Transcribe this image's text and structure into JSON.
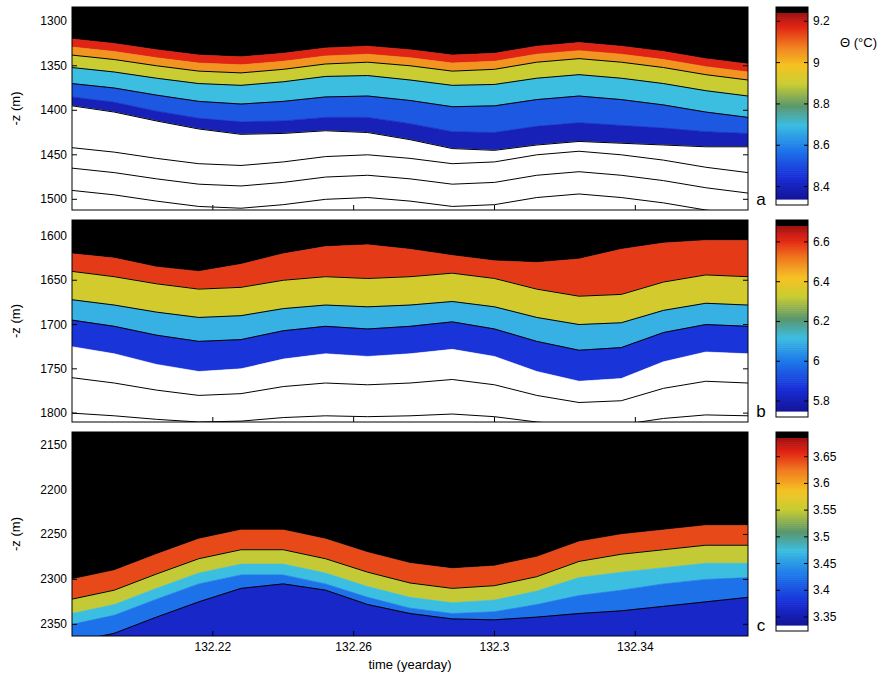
{
  "chart_data": [
    {
      "type": "contour",
      "label": "a",
      "ylabel": "-z (m)",
      "tick_labels": "y",
      "x": [
        132.18,
        132.192,
        132.204,
        132.216,
        132.228,
        132.24,
        132.252,
        132.264,
        132.276,
        132.288,
        132.3,
        132.312,
        132.324,
        132.336,
        132.348,
        132.36,
        132.372
      ],
      "xlim": [
        132.18,
        132.372
      ],
      "xticks": [
        132.22,
        132.26,
        132.3,
        132.34
      ],
      "ylim": [
        1512,
        1284
      ],
      "yticks": [
        1300,
        1350,
        1400,
        1450,
        1500
      ],
      "colorbar": {
        "title": "Θ (°C)",
        "range": [
          8.34,
          9.24
        ],
        "ticks": [
          8.4,
          8.6,
          8.8,
          9,
          9.2
        ]
      },
      "isotherms": [
        {
          "level": 9.25,
          "line_style": "none",
          "values": [
            1320,
            1325,
            1332,
            1338,
            1340,
            1336,
            1330,
            1328,
            1332,
            1338,
            1336,
            1328,
            1324,
            1328,
            1334,
            1342,
            1348
          ]
        },
        {
          "level": 9.1,
          "line_style": "none",
          "values": [
            1329,
            1334,
            1341,
            1347,
            1349,
            1345,
            1339,
            1337,
            1341,
            1347,
            1345,
            1337,
            1333,
            1337,
            1343,
            1351,
            1357
          ]
        },
        {
          "level": 9.0,
          "line_style": "solid",
          "values": [
            1338,
            1343,
            1350,
            1356,
            1358,
            1354,
            1348,
            1346,
            1350,
            1356,
            1354,
            1346,
            1342,
            1346,
            1352,
            1360,
            1366
          ]
        },
        {
          "level": 8.8,
          "line_style": "solid",
          "values": [
            1352,
            1357,
            1364,
            1370,
            1372,
            1368,
            1362,
            1361,
            1366,
            1372,
            1371,
            1364,
            1360,
            1364,
            1370,
            1378,
            1384
          ]
        },
        {
          "level": 8.6,
          "line_style": "solid",
          "values": [
            1370,
            1375,
            1383,
            1390,
            1393,
            1390,
            1385,
            1384,
            1389,
            1396,
            1395,
            1388,
            1384,
            1388,
            1394,
            1402,
            1408
          ]
        },
        {
          "level": 8.45,
          "line_style": "none",
          "values": [
            1385,
            1391,
            1401,
            1409,
            1413,
            1412,
            1408,
            1408,
            1415,
            1424,
            1425,
            1418,
            1414,
            1417,
            1420,
            1424,
            1426
          ]
        },
        {
          "level": 8.34,
          "line_style": "solid",
          "values": [
            1395,
            1402,
            1412,
            1421,
            1427,
            1426,
            1423,
            1425,
            1433,
            1443,
            1445,
            1439,
            1435,
            1437,
            1439,
            1441,
            1441
          ]
        }
      ],
      "contours": [
        {
          "values": [
            1442,
            1447,
            1454,
            1460,
            1462,
            1458,
            1452,
            1450,
            1454,
            1460,
            1458,
            1450,
            1446,
            1450,
            1456,
            1464,
            1470
          ]
        },
        {
          "values": [
            1465,
            1470,
            1477,
            1483,
            1485,
            1481,
            1475,
            1473,
            1477,
            1483,
            1481,
            1473,
            1469,
            1473,
            1479,
            1487,
            1493
          ]
        },
        {
          "values": [
            1490,
            1495,
            1502,
            1508,
            1510,
            1506,
            1500,
            1498,
            1502,
            1508,
            1506,
            1498,
            1494,
            1498,
            1504,
            1512,
            1518
          ]
        }
      ]
    },
    {
      "type": "contour",
      "label": "b",
      "ylabel": "-z (m)",
      "tick_labels": "y",
      "x": [
        132.18,
        132.192,
        132.204,
        132.216,
        132.228,
        132.24,
        132.252,
        132.264,
        132.276,
        132.288,
        132.3,
        132.312,
        132.324,
        132.336,
        132.348,
        132.36,
        132.372
      ],
      "xlim": [
        132.18,
        132.372
      ],
      "xticks": [
        132.22,
        132.26,
        132.3,
        132.34
      ],
      "ylim": [
        1810,
        1582
      ],
      "yticks": [
        1600,
        1650,
        1700,
        1750,
        1800
      ],
      "colorbar": {
        "range": [
          5.75,
          6.68
        ],
        "ticks": [
          5.8,
          6,
          6.2,
          6.4,
          6.6
        ]
      },
      "isotherms": [
        {
          "level": 6.68,
          "line_style": "none",
          "values": [
            1620,
            1625,
            1635,
            1640,
            1632,
            1620,
            1612,
            1610,
            1615,
            1622,
            1628,
            1630,
            1626,
            1615,
            1608,
            1605,
            1605
          ]
        },
        {
          "level": 6.5,
          "line_style": "solid",
          "values": [
            1640,
            1646,
            1654,
            1660,
            1658,
            1650,
            1646,
            1648,
            1646,
            1642,
            1648,
            1660,
            1668,
            1666,
            1652,
            1644,
            1646
          ]
        },
        {
          "level": 6.2,
          "line_style": "solid",
          "values": [
            1672,
            1678,
            1686,
            1692,
            1690,
            1682,
            1678,
            1680,
            1678,
            1674,
            1680,
            1692,
            1700,
            1698,
            1684,
            1676,
            1678
          ]
        },
        {
          "level": 6.0,
          "line_style": "solid",
          "values": [
            1695,
            1702,
            1712,
            1719,
            1717,
            1707,
            1702,
            1705,
            1702,
            1697,
            1705,
            1719,
            1729,
            1726,
            1709,
            1700,
            1702
          ]
        },
        {
          "level": 5.75,
          "line_style": "none",
          "values": [
            1725,
            1733,
            1745,
            1753,
            1750,
            1739,
            1733,
            1736,
            1733,
            1728,
            1736,
            1753,
            1764,
            1761,
            1742,
            1731,
            1733
          ]
        }
      ],
      "contours": [
        {
          "values": [
            1760,
            1766,
            1774,
            1780,
            1778,
            1770,
            1766,
            1768,
            1766,
            1762,
            1768,
            1780,
            1788,
            1786,
            1772,
            1764,
            1766
          ]
        },
        {
          "values": [
            1800,
            1803,
            1807,
            1810,
            1809,
            1805,
            1803,
            1804,
            1803,
            1801,
            1804,
            1810,
            1814,
            1813,
            1806,
            1802,
            1803
          ]
        }
      ]
    },
    {
      "type": "contour",
      "label": "c",
      "ylabel": "-z (m)",
      "xlabel": "time (yearday)",
      "x": [
        132.18,
        132.192,
        132.204,
        132.216,
        132.228,
        132.24,
        132.252,
        132.264,
        132.276,
        132.288,
        132.3,
        132.312,
        132.324,
        132.336,
        132.348,
        132.36,
        132.372
      ],
      "xlim": [
        132.18,
        132.372
      ],
      "xticks": [
        132.22,
        132.26,
        132.3,
        132.34
      ],
      "ylim": [
        2363,
        2136
      ],
      "yticks": [
        2150,
        2200,
        2250,
        2300,
        2350
      ],
      "colorbar": {
        "range": [
          3.335,
          3.685
        ],
        "ticks": [
          3.35,
          3.4,
          3.45,
          3.5,
          3.55,
          3.6,
          3.65
        ]
      },
      "isotherms": [
        {
          "level": 3.69,
          "line_style": "none",
          "values": [
            2300,
            2290,
            2272,
            2255,
            2245,
            2245,
            2255,
            2270,
            2282,
            2288,
            2285,
            2275,
            2258,
            2250,
            2245,
            2240,
            2240
          ]
        },
        {
          "level": 3.6,
          "line_style": "solid",
          "values": [
            2322,
            2312,
            2294,
            2277,
            2267,
            2267,
            2277,
            2292,
            2304,
            2310,
            2307,
            2297,
            2280,
            2272,
            2267,
            2262,
            2262
          ]
        },
        {
          "level": 3.5,
          "line_style": "none",
          "values": [
            2338,
            2328,
            2310,
            2293,
            2283,
            2283,
            2293,
            2308,
            2320,
            2326,
            2323,
            2313,
            2298,
            2292,
            2287,
            2282,
            2282
          ]
        },
        {
          "level": 3.45,
          "line_style": "none",
          "values": [
            2350,
            2340,
            2322,
            2305,
            2295,
            2295,
            2305,
            2320,
            2332,
            2338,
            2336,
            2328,
            2318,
            2312,
            2305,
            2300,
            2298
          ]
        },
        {
          "level": 3.4,
          "line_style": "solid",
          "values": [
            2370,
            2360,
            2342,
            2325,
            2310,
            2305,
            2312,
            2328,
            2338,
            2344,
            2345,
            2342,
            2338,
            2335,
            2330,
            2325,
            2320
          ]
        }
      ],
      "contours": []
    }
  ]
}
